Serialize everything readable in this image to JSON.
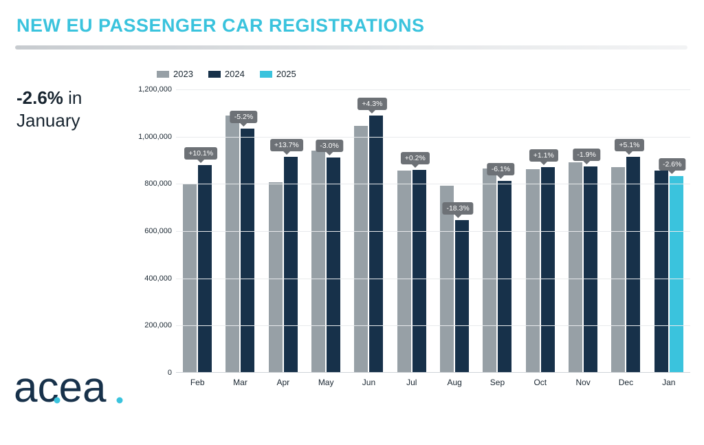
{
  "title": "NEW EU PASSENGER CAR REGISTRATIONS",
  "headline": {
    "pct": "-2.6%",
    "rest": " in January"
  },
  "logo_text": "acea",
  "chart": {
    "type": "bar",
    "legend": [
      {
        "label": "2023",
        "color": "#97a0a6"
      },
      {
        "label": "2024",
        "color": "#17314a"
      },
      {
        "label": "2025",
        "color": "#3ac3dd"
      }
    ],
    "y": {
      "min": 0,
      "max": 1200000,
      "step": 200000,
      "ticks": [
        0,
        200000,
        400000,
        600000,
        800000,
        1000000,
        1200000
      ],
      "grid_color": "#e8eaec"
    },
    "months": [
      {
        "name": "Feb",
        "v2023": 800000,
        "v2024": 880000,
        "v2025": null,
        "pct": "+10.1%"
      },
      {
        "name": "Mar",
        "v2023": 1090000,
        "v2024": 1035000,
        "v2025": null,
        "pct": "-5.2%"
      },
      {
        "name": "Apr",
        "v2023": 805000,
        "v2024": 915000,
        "v2025": null,
        "pct": "+13.7%"
      },
      {
        "name": "May",
        "v2023": 940000,
        "v2024": 912000,
        "v2025": null,
        "pct": "-3.0%"
      },
      {
        "name": "Jun",
        "v2023": 1045000,
        "v2024": 1090000,
        "v2025": null,
        "pct": "+4.3%"
      },
      {
        "name": "Jul",
        "v2023": 855000,
        "v2024": 857000,
        "v2025": null,
        "pct": "+0.2%"
      },
      {
        "name": "Aug",
        "v2023": 790000,
        "v2024": 645000,
        "v2025": null,
        "pct": "-18.3%"
      },
      {
        "name": "Sep",
        "v2023": 865000,
        "v2024": 812000,
        "v2025": null,
        "pct": "-6.1%"
      },
      {
        "name": "Oct",
        "v2023": 860000,
        "v2024": 870000,
        "v2025": null,
        "pct": "+1.1%"
      },
      {
        "name": "Nov",
        "v2023": 890000,
        "v2024": 873000,
        "v2025": null,
        "pct": "-1.9%"
      },
      {
        "name": "Dec",
        "v2023": 870000,
        "v2024": 914000,
        "v2025": null,
        "pct": "+5.1%"
      },
      {
        "name": "Jan",
        "v2023": null,
        "v2024": 855000,
        "v2025": 833000,
        "pct": "-2.6%"
      }
    ],
    "colors": {
      "2023": "#97a0a6",
      "2024": "#17314a",
      "2025": "#3ac3dd"
    },
    "badge_bg": "#6d7176",
    "badge_fg": "#ffffff",
    "background": "#ffffff",
    "label_fontsize": 12,
    "title_color": "#3ac3dd"
  }
}
